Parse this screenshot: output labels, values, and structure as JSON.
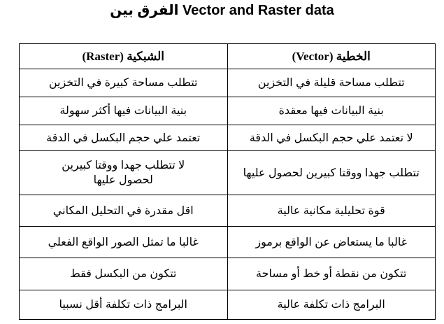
{
  "title": "الفرق بين Vector and Raster data",
  "table": {
    "headers": [
      "الخطية (Vector)",
      "الشبكية (Raster)"
    ],
    "rows": [
      [
        "تتطلب مساحة قليلة في التخزين",
        "تتطلب مساحة كبيرة في التخزين"
      ],
      [
        "بنية البيانات فيها معقدة",
        "بنية البيانات فيها أكثر سهولة"
      ],
      [
        "لا تعتمد علي حجم البكسل في الدقة",
        "تعتمد علي حجم البكسل في الدقة"
      ],
      [
        "تتطلب جهدا ووقتا كبيرين لحصول عليها",
        "لا تتطلب جهدا ووقتا كبيرين لحصول عليها"
      ],
      [
        "قوة تحليلية مكانية عالية",
        "اقل مقدرة في التحليل المكاني"
      ],
      [
        "غالبا ما يستعاض عن الواقع برموز",
        "غالبا ما تمثل الصور الواقع الفعلي"
      ],
      [
        "تتكون من نقطة أو خط أو مساحة",
        "تتكون من البكسل فقط"
      ],
      [
        "البرامج ذات تكلفة عالية",
        "البرامج ذات تكلفة أقل نسبيا"
      ]
    ]
  }
}
